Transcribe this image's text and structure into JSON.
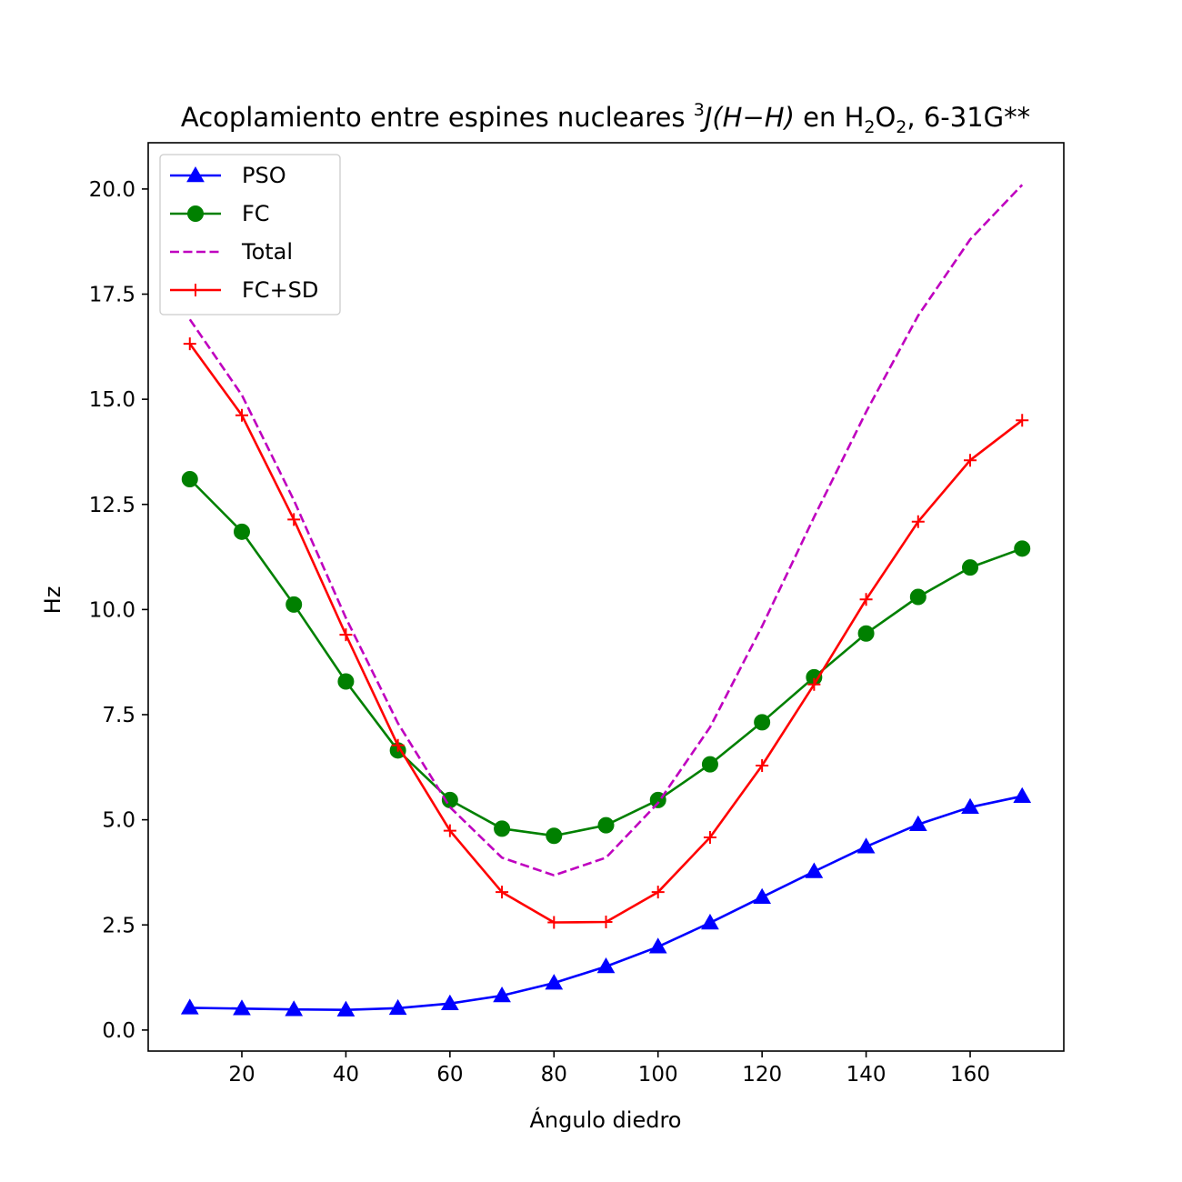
{
  "chart_data": {
    "type": "line",
    "title": {
      "prefix": "Acoplamiento entre espines nucleares ",
      "sup": "3",
      "italic": "J(H−H)",
      "mid": " en H",
      "sub1": "2",
      "o": "O",
      "sub2": "2",
      "suffix": ", 6-31G**"
    },
    "xlabel": "Ángulo diedro",
    "ylabel": "Hz",
    "xlim": [
      2,
      178
    ],
    "ylim": [
      -0.5,
      21.1
    ],
    "xticks": [
      20,
      40,
      60,
      80,
      100,
      120,
      140,
      160
    ],
    "yticks": [
      0.0,
      2.5,
      5.0,
      7.5,
      10.0,
      12.5,
      15.0,
      17.5,
      20.0
    ],
    "ytick_labels": [
      "0.0",
      "2.5",
      "5.0",
      "7.5",
      "10.0",
      "12.5",
      "15.0",
      "17.5",
      "20.0"
    ],
    "grid": false,
    "legend_position": "upper-left",
    "x": [
      10,
      20,
      30,
      40,
      50,
      60,
      70,
      80,
      90,
      100,
      110,
      120,
      130,
      140,
      150,
      160,
      170
    ],
    "series": [
      {
        "name": "PSO",
        "color": "#0000ff",
        "style": "solid",
        "marker": "triangle",
        "values": [
          0.53,
          0.51,
          0.49,
          0.48,
          0.52,
          0.63,
          0.82,
          1.12,
          1.51,
          1.98,
          2.55,
          3.16,
          3.77,
          4.36,
          4.89,
          5.3,
          5.56
        ]
      },
      {
        "name": "FC",
        "color": "#008000",
        "style": "solid",
        "marker": "circle",
        "values": [
          13.1,
          11.85,
          10.12,
          8.29,
          6.65,
          5.47,
          4.79,
          4.62,
          4.87,
          5.47,
          6.32,
          7.32,
          8.39,
          9.43,
          10.3,
          11.0,
          11.45
        ]
      },
      {
        "name": "Total",
        "color": "#bf00bf",
        "style": "dashed",
        "marker": "none",
        "values": [
          16.9,
          15.1,
          12.6,
          9.8,
          7.3,
          5.3,
          4.1,
          3.68,
          4.1,
          5.4,
          7.2,
          9.6,
          12.2,
          14.7,
          16.99,
          18.8,
          20.1
        ]
      },
      {
        "name": "FC+SD",
        "color": "#ff0000",
        "style": "solid",
        "marker": "plus",
        "values": [
          16.32,
          14.62,
          12.14,
          9.4,
          6.77,
          4.74,
          3.28,
          2.56,
          2.57,
          3.28,
          4.58,
          6.29,
          8.22,
          10.24,
          12.09,
          13.55,
          14.5
        ]
      }
    ]
  }
}
